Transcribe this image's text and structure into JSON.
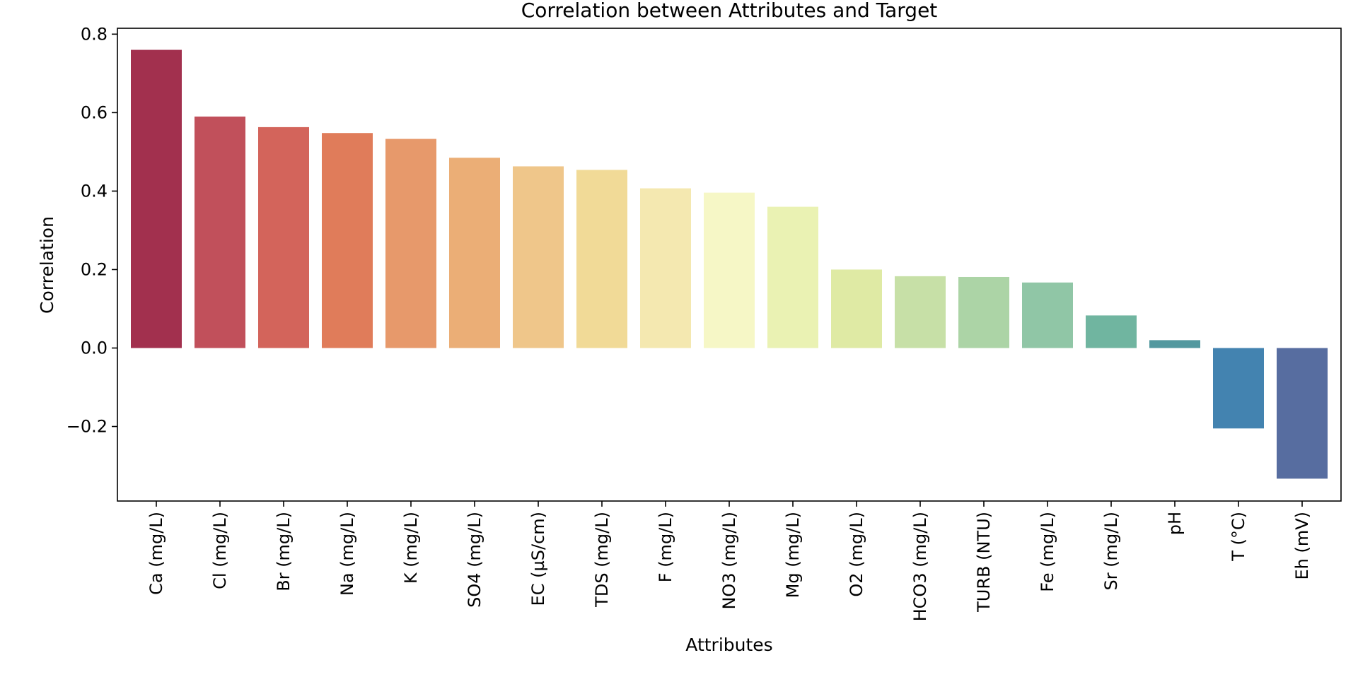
{
  "chart_data": {
    "type": "bar",
    "title": "Correlation between Attributes and Target",
    "xlabel": "Attributes",
    "ylabel": "Correlation",
    "ylim": [
      -0.39,
      0.815
    ],
    "yticks": [
      -0.2,
      0.0,
      0.2,
      0.4,
      0.6,
      0.8
    ],
    "ytick_labels": [
      "−0.2",
      "0.0",
      "0.2",
      "0.4",
      "0.6",
      "0.8"
    ],
    "grid": false,
    "legend": "none",
    "categories": [
      "Ca (mg/L)",
      "Cl (mg/L)",
      "Br (mg/L)",
      "Na (mg/L)",
      "K (mg/L)",
      "SO4 (mg/L)",
      "EC (µS/cm)",
      "TDS (mg/L)",
      "F (mg/L)",
      "NO3 (mg/L)",
      "Mg (mg/L)",
      "O2 (mg/L)",
      "HCO3  (mg/L)",
      "TURB (NTU)",
      "Fe (mg/L)",
      "Sr (mg/L)",
      "pH",
      "T (°C)",
      "Eh (mV)"
    ],
    "values": [
      0.76,
      0.59,
      0.563,
      0.548,
      0.533,
      0.485,
      0.463,
      0.454,
      0.407,
      0.396,
      0.36,
      0.2,
      0.183,
      0.181,
      0.167,
      0.083,
      0.02,
      -0.205,
      -0.333
    ],
    "colors": [
      "#a2304e",
      "#c1505b",
      "#d3645b",
      "#e07c5a",
      "#e7996b",
      "#ebae76",
      "#efc68a",
      "#f1da97",
      "#f4e8b0",
      "#f6f7c6",
      "#eaf2b3",
      "#dfeaa4",
      "#c7e0a7",
      "#acd4a6",
      "#90c6a6",
      "#70b5a0",
      "#52989f",
      "#4383b0",
      "#576da0"
    ]
  }
}
